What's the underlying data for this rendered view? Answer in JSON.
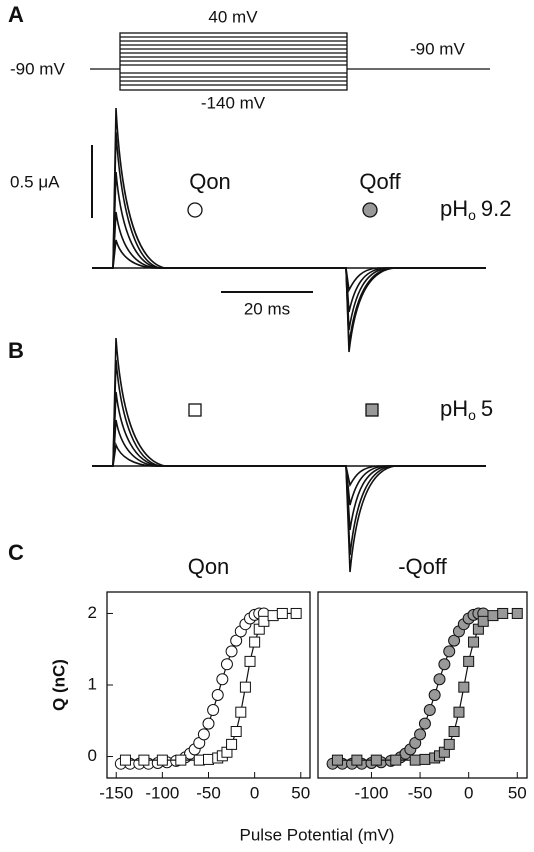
{
  "panel_labels": [
    "A",
    "B",
    "C"
  ],
  "protocol": {
    "top": "40 mV",
    "bottom": "-140 mV",
    "hold_left": "-90 mV",
    "hold_right": "-90 mV"
  },
  "traces": {
    "current_scale": "0.5 μA",
    "time_scale": "20 ms",
    "on_label": "Qon",
    "off_label": "Qoff",
    "ph_a": {
      "main": "pH",
      "sub": "o",
      "value": "9.2"
    },
    "ph_b": {
      "main": "pH",
      "sub": "o",
      "value": "5"
    }
  },
  "figure": {
    "xlabel": "Pulse Potential (mV)"
  },
  "chart_data": [
    {
      "type": "scatter",
      "title": "Qon",
      "ylabel": "Q (nC)",
      "xlim": [
        -160,
        60
      ],
      "xticks": [
        -150,
        -100,
        -50,
        0,
        50
      ],
      "ylim": [
        -0.3,
        2.3
      ],
      "yticks": [
        0,
        1,
        2
      ],
      "series": [
        {
          "marker": "circle",
          "color": "#ffffff",
          "x": [
            -145,
            -135,
            -125,
            -115,
            -105,
            -95,
            -85,
            -75,
            -70,
            -65,
            -60,
            -55,
            -50,
            -45,
            -40,
            -35,
            -30,
            -25,
            -20,
            -15,
            -10,
            -5,
            0,
            5,
            10
          ],
          "values": [
            -0.1,
            -0.1,
            -0.1,
            -0.1,
            -0.09,
            -0.08,
            -0.06,
            -0.01,
            0.04,
            0.1,
            0.19,
            0.31,
            0.46,
            0.65,
            0.86,
            1.08,
            1.29,
            1.47,
            1.62,
            1.75,
            1.85,
            1.93,
            1.98,
            2.0,
            2.0
          ]
        },
        {
          "marker": "square",
          "color": "#ffffff",
          "x": [
            -140,
            -120,
            -100,
            -80,
            -60,
            -50,
            -40,
            -35,
            -30,
            -25,
            -20,
            -15,
            -10,
            -5,
            0,
            5,
            10,
            20,
            30,
            45
          ],
          "values": [
            -0.05,
            -0.05,
            -0.05,
            -0.05,
            -0.05,
            -0.04,
            -0.02,
            0.01,
            0.06,
            0.17,
            0.35,
            0.62,
            0.97,
            1.33,
            1.6,
            1.78,
            1.89,
            1.97,
            2.0,
            2.0
          ]
        }
      ]
    },
    {
      "type": "scatter",
      "title": "-Qoff",
      "xlim": [
        -155,
        60
      ],
      "xticks": [
        -100,
        -50,
        0,
        50
      ],
      "ylim": [
        -0.3,
        2.3
      ],
      "series": [
        {
          "marker": "circle",
          "color": "#999999",
          "x": [
            -140,
            -130,
            -120,
            -110,
            -100,
            -90,
            -80,
            -70,
            -65,
            -60,
            -55,
            -50,
            -45,
            -40,
            -35,
            -30,
            -25,
            -20,
            -15,
            -10,
            -5,
            0,
            5,
            10,
            15
          ],
          "values": [
            -0.1,
            -0.1,
            -0.1,
            -0.1,
            -0.09,
            -0.08,
            -0.06,
            -0.01,
            0.04,
            0.1,
            0.19,
            0.31,
            0.46,
            0.65,
            0.86,
            1.08,
            1.29,
            1.47,
            1.62,
            1.75,
            1.85,
            1.93,
            1.98,
            2.0,
            2.0
          ]
        },
        {
          "marker": "square",
          "color": "#999999",
          "x": [
            -135,
            -115,
            -95,
            -75,
            -55,
            -45,
            -35,
            -30,
            -25,
            -20,
            -15,
            -10,
            -5,
            0,
            5,
            10,
            15,
            25,
            35,
            50
          ],
          "values": [
            -0.05,
            -0.05,
            -0.05,
            -0.05,
            -0.05,
            -0.04,
            -0.02,
            0.01,
            0.06,
            0.17,
            0.35,
            0.62,
            0.97,
            1.33,
            1.6,
            1.78,
            1.89,
            1.97,
            2.0,
            2.0
          ]
        }
      ]
    }
  ]
}
